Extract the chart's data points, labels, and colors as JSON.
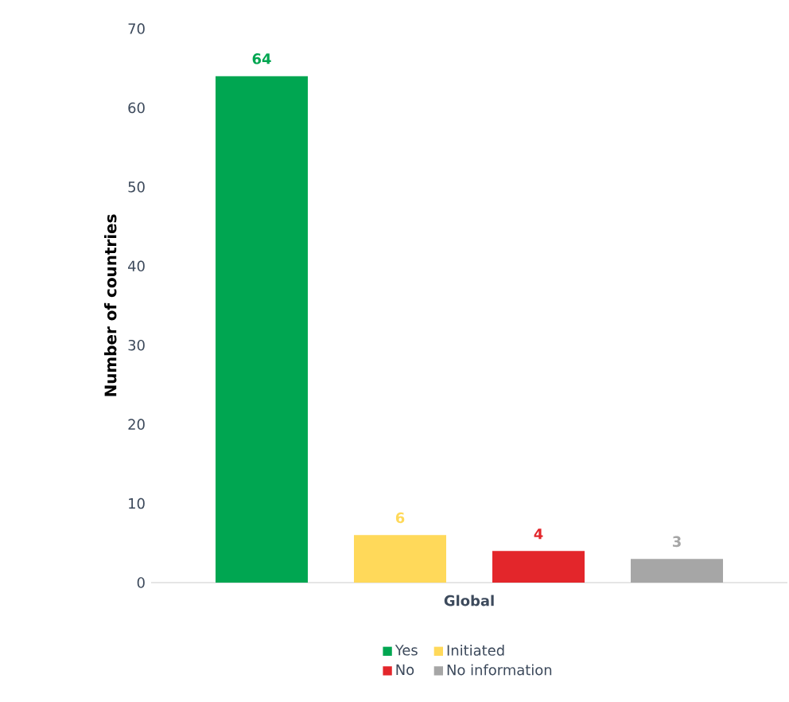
{
  "chart_data": {
    "type": "bar",
    "ylabel": "Number of countries",
    "categories": [
      "Global"
    ],
    "series": [
      {
        "name": "Yes",
        "color": "#00a651",
        "values": [
          64
        ]
      },
      {
        "name": "Initiated",
        "color": "#ffd95a",
        "values": [
          6
        ]
      },
      {
        "name": "No",
        "color": "#e3262b",
        "values": [
          4
        ]
      },
      {
        "name": "No information",
        "color": "#a6a6a6",
        "values": [
          3
        ]
      }
    ],
    "ylim": [
      0,
      70
    ],
    "yticks": [
      0,
      10,
      20,
      30,
      40,
      50,
      60,
      70
    ],
    "data_labels": true,
    "legend": "bottom"
  }
}
